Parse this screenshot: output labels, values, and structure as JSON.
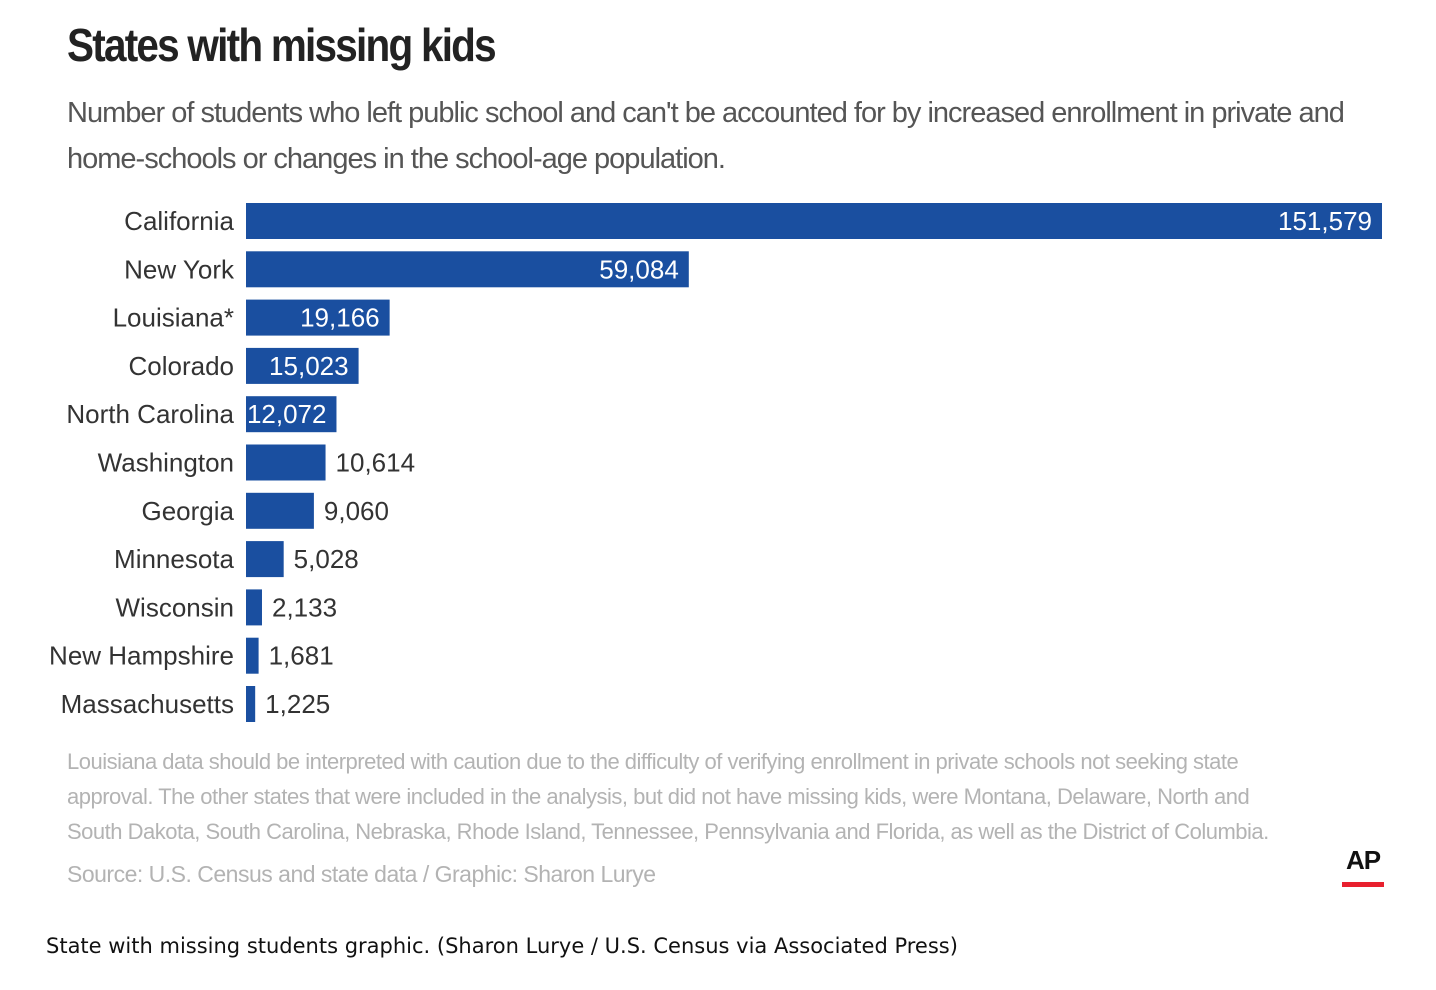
{
  "colors": {
    "bar": "#1a4fa0",
    "value_inside": "#ffffff",
    "value_outside": "#333333",
    "ap_accent": "#e8202e"
  },
  "chart_data": {
    "type": "bar",
    "orientation": "horizontal",
    "title": "States with missing kids",
    "subtitle": "Number of students who left public school and can't be accounted for by increased enrollment in private and home-schools or changes in the school-age population.",
    "categories": [
      "California",
      "New York",
      "Louisiana*",
      "Colorado",
      "North Carolina",
      "Washington",
      "Georgia",
      "Minnesota",
      "Wisconsin",
      "New Hampshire",
      "Massachusetts"
    ],
    "values": [
      151579,
      59084,
      19166,
      15023,
      12072,
      10614,
      9060,
      5028,
      2133,
      1681,
      1225
    ],
    "value_labels": [
      "151,579",
      "59,084",
      "19,166",
      "15,023",
      "12,072",
      "10,614",
      "9,060",
      "5,028",
      "2,133",
      "1,681",
      "1,225"
    ],
    "xlim": [
      0,
      151579
    ],
    "grid": false,
    "xlabel": "",
    "ylabel": ""
  },
  "note": "Louisiana data should be interpreted with caution due to the difficulty of verifying enrollment in private schools not seeking state approval. The other states that were included in the analysis, but did not have missing kids, were Montana, Delaware, North and South Dakota, South Carolina, Nebraska, Rhode Island, Tennessee, Pennsylvania and Florida, as well as the District of Columbia.",
  "source": "Source: U.S. Census and state data / Graphic: Sharon Lurye",
  "logo": "AP",
  "caption": "State with missing students graphic.  (Sharon Lurye / U.S. Census via Associated Press)"
}
